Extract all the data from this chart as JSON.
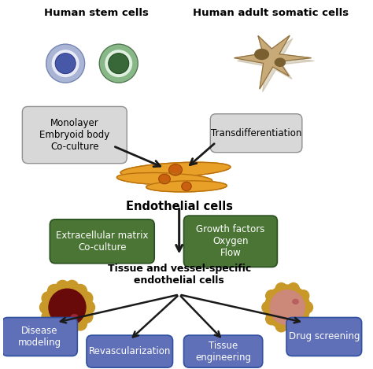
{
  "bg_color": "#ffffff",
  "stem_cell_label": "Human stem cells",
  "somatic_label": "Human adult somatic cells",
  "endo_label": "Endothelial cells",
  "tissue_label": "Tissue and vessel-specific\nendothelial cells",
  "box1_text": "Monolayer\nEmbryoid body\nCo-culture",
  "box2_text": "Transdifferentiation",
  "box3_text": "Extracellular matrix\nCo-culture",
  "box4_text": "Growth factors\nOxygen\nFlow",
  "out1_text": "Disease\nmodeling",
  "out2_text": "Revascularization",
  "out3_text": "Tissue\nengineering",
  "out4_text": "Drug screening",
  "gray_box_color": "#d8d8d8",
  "green_box_color": "#4a7535",
  "blue_box_color": "#6070b8",
  "cell_purple_outer": "#aab4d4",
  "cell_purple_white": "#e8eaf8",
  "cell_purple_inner": "#4858a8",
  "cell_green_outer": "#88b888",
  "cell_green_white": "#e0f0e0",
  "cell_green_inner": "#386838",
  "endothelial_fill": "#e8a028",
  "endothelial_edge": "#b87010",
  "endothelial_nuc": "#c86010",
  "somatic_fill": "#c8aa78",
  "somatic_edge": "#907040",
  "somatic_nuc": "#7a6030",
  "arrow_color": "#1a1a1a",
  "organ1_petal": "#c89828",
  "organ1_inner": "#680a0a",
  "organ1_spot": "#9a2838",
  "organ2_petal": "#c89828",
  "organ2_inner": "#cc8878",
  "organ2_spot": "#b86060"
}
